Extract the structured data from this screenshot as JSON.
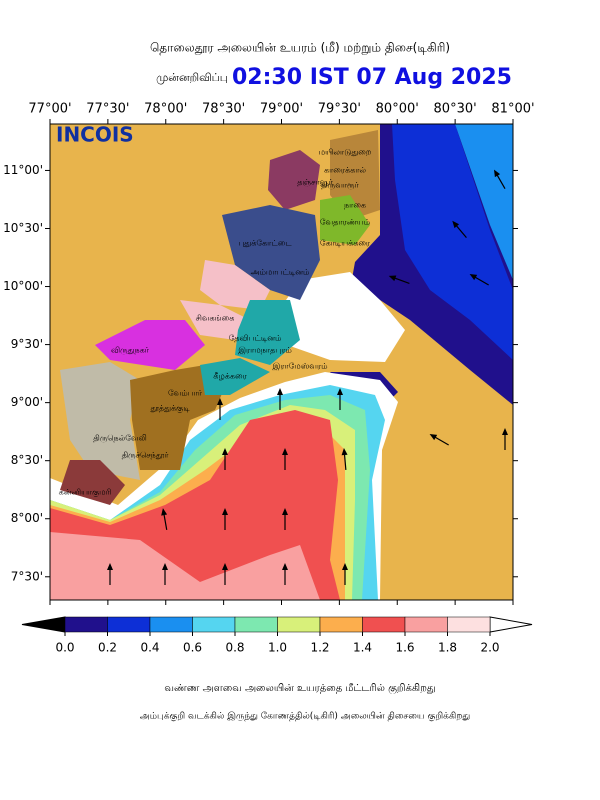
{
  "header": {
    "title": "தொலைதூர அலையின் உயரம் (மீ) மற்றும் திசை(டிகிரி)",
    "forecast_label": "முன்னறிவிப்பு",
    "time": "02:30 IST 07 Aug 2025",
    "logo": "INCOIS"
  },
  "map": {
    "lonlim": [
      77,
      81
    ],
    "latlim": [
      7.3,
      11.4
    ],
    "lonticks": [
      {
        "value": 77,
        "label": "77°00'"
      },
      {
        "value": 77.5,
        "label": "77°30'"
      },
      {
        "value": 78,
        "label": "78°00'"
      },
      {
        "value": 78.5,
        "label": "78°30'"
      },
      {
        "value": 79,
        "label": "79°00'"
      },
      {
        "value": 79.5,
        "label": "79°30'"
      },
      {
        "value": 80,
        "label": "80°00'"
      },
      {
        "value": 80.5,
        "label": "80°30'"
      },
      {
        "value": 81,
        "label": "81°00'"
      }
    ],
    "latticks": [
      {
        "value": 11,
        "label": "11°00'"
      },
      {
        "value": 10.5,
        "label": "10°30'"
      },
      {
        "value": 10,
        "label": "10°00'"
      },
      {
        "value": 9.5,
        "label": "9°30'"
      },
      {
        "value": 9,
        "label": "9°00'"
      },
      {
        "value": 8.5,
        "label": "8°30'"
      },
      {
        "value": 8,
        "label": "8°00'"
      },
      {
        "value": 7.5,
        "label": "7°30'"
      }
    ],
    "places": [
      "மயிலாடுதுறை",
      "காரைக்கால்",
      "தஞ்சாவூர்",
      "திருவாரூர்",
      "நாகை",
      "வேதாரண்யம்",
      "புதுக்கோட்டை",
      "கோடியக்கரை",
      "அம்மாபட்டினம்",
      "சிவகங்கை",
      "தேவிபட்டினம்",
      "இராமநாதபுரம்",
      "விருதுநகர்",
      "இராமேஸ்வரம்",
      "கீழக்கரை",
      "வேம்பார்",
      "தூத்துக்குடி",
      "திருநெல்வேலி",
      "திருச்செந்தூர்",
      "கன்னியாகுமரி"
    ]
  },
  "colorbar": {
    "range": [
      0,
      2
    ],
    "colors": [
      "#20108c",
      "#0d2fd6",
      "#1a8ff0",
      "#55d5f0",
      "#7de8b0",
      "#d8f07a",
      "#fcae4d",
      "#f05050",
      "#f9a0a0",
      "#fde0e0"
    ],
    "ticks": [
      {
        "value": 0,
        "label": "0.0"
      },
      {
        "value": 0.2,
        "label": "0.2"
      },
      {
        "value": 0.4,
        "label": "0.4"
      },
      {
        "value": 0.6,
        "label": "0.6"
      },
      {
        "value": 0.8,
        "label": "0.8"
      },
      {
        "value": 1,
        "label": "1.0"
      },
      {
        "value": 1.2,
        "label": "1.2"
      },
      {
        "value": 1.4,
        "label": "1.4"
      },
      {
        "value": 1.6,
        "label": "1.6"
      },
      {
        "value": 1.8,
        "label": "1.8"
      },
      {
        "value": 2,
        "label": "2.0"
      }
    ]
  },
  "captions": [
    "வண்ண அளவை அலையின் உயரத்தை மீட்டரில் குறிக்கிறது",
    "அம்புக்குறி வடக்கில் இருந்து கோணத்தில்(டிகிரி) அலையின் திசையை குறிக்கிறது"
  ]
}
